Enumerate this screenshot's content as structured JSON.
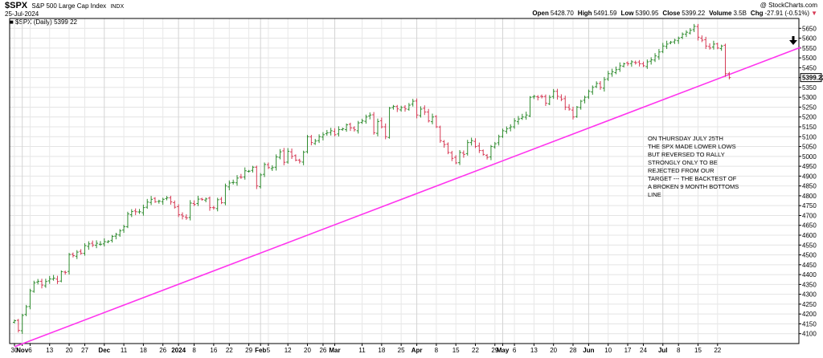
{
  "header": {
    "symbol": "$SPX",
    "name": "S&P 500 Large Cap Index",
    "exchange": "INDX",
    "date": "25-Jul-2024",
    "legend_label": "■ $SPX (Daily) 5399.22",
    "watermark": "@ StockCharts.com",
    "stats": [
      {
        "label": "Open",
        "value": "5428.70"
      },
      {
        "label": "High",
        "value": "5491.59"
      },
      {
        "label": "Low",
        "value": "5390.95"
      },
      {
        "label": "Close",
        "value": "5399.22"
      },
      {
        "label": "Volume",
        "value": "3.5B"
      },
      {
        "label": "Chg",
        "value": "-27.91 (-0.51%)"
      }
    ],
    "chg_arrow": "▼"
  },
  "chart_data": {
    "type": "bar",
    "subtype": "ohlc",
    "ylim": [
      4050,
      5700
    ],
    "y_ticks": [
      4100,
      4150,
      4200,
      4250,
      4300,
      4350,
      4400,
      4450,
      4500,
      4550,
      4600,
      4650,
      4700,
      4750,
      4800,
      4850,
      4900,
      4950,
      5000,
      5050,
      5100,
      5150,
      5200,
      5250,
      5300,
      5350,
      5400,
      5450,
      5500,
      5550,
      5600,
      5650
    ],
    "last_price_label": "5399.22",
    "up_color": "#2e8b2e",
    "down_color": "#d63a55",
    "grid": true,
    "x_ticks": [
      {
        "label": "30",
        "i": 0
      },
      {
        "label": "Nov",
        "i": 2,
        "bold": true
      },
      {
        "label": "6",
        "i": 4
      },
      {
        "label": "13",
        "i": 9
      },
      {
        "label": "20",
        "i": 14
      },
      {
        "label": "27",
        "i": 18
      },
      {
        "label": "Dec",
        "i": 23,
        "bold": true
      },
      {
        "label": "11",
        "i": 28
      },
      {
        "label": "18",
        "i": 33
      },
      {
        "label": "26",
        "i": 38
      },
      {
        "label": "2024",
        "i": 42,
        "bold": true
      },
      {
        "label": "8",
        "i": 46
      },
      {
        "label": "16",
        "i": 51
      },
      {
        "label": "22",
        "i": 55
      },
      {
        "label": "29",
        "i": 60
      },
      {
        "label": "Feb",
        "i": 63,
        "bold": true
      },
      {
        "label": "5",
        "i": 65
      },
      {
        "label": "12",
        "i": 70
      },
      {
        "label": "20",
        "i": 75
      },
      {
        "label": "26",
        "i": 79
      },
      {
        "label": "Mar",
        "i": 82,
        "bold": true
      },
      {
        "label": "11",
        "i": 89
      },
      {
        "label": "18",
        "i": 94
      },
      {
        "label": "25",
        "i": 99
      },
      {
        "label": "Apr",
        "i": 103,
        "bold": true
      },
      {
        "label": "8",
        "i": 108
      },
      {
        "label": "15",
        "i": 113
      },
      {
        "label": "22",
        "i": 118
      },
      {
        "label": "29",
        "i": 123
      },
      {
        "label": "May",
        "i": 125,
        "bold": true
      },
      {
        "label": "6",
        "i": 128
      },
      {
        "label": "13",
        "i": 133
      },
      {
        "label": "20",
        "i": 138
      },
      {
        "label": "28",
        "i": 143
      },
      {
        "label": "Jun",
        "i": 147,
        "bold": true
      },
      {
        "label": "10",
        "i": 152
      },
      {
        "label": "17",
        "i": 157
      },
      {
        "label": "24",
        "i": 161
      },
      {
        "label": "Jul",
        "i": 166,
        "bold": true
      },
      {
        "label": "8",
        "i": 170
      },
      {
        "label": "15",
        "i": 175
      },
      {
        "label": "22",
        "i": 180
      }
    ],
    "closes": [
      4166,
      4117,
      4193,
      4237,
      4318,
      4358,
      4366,
      4347,
      4365,
      4378,
      4382,
      4365,
      4415,
      4411,
      4502,
      4496,
      4514,
      4508,
      4547,
      4556,
      4550,
      4559,
      4554,
      4567,
      4569,
      4594,
      4604,
      4622,
      4643,
      4708,
      4720,
      4719,
      4719,
      4740,
      4768,
      4782,
      4770,
      4773,
      4782,
      4790,
      4769,
      4742,
      4704,
      4697,
      4688,
      4763,
      4756,
      4783,
      4781,
      4784,
      4740,
      4739,
      4780,
      4765,
      4850,
      4865,
      4868,
      4890,
      4894,
      4927,
      4925,
      4945,
      4850,
      4906,
      4959,
      4943,
      4943,
      4997,
      5023,
      4970,
      5026,
      5000,
      4981,
      4975,
      5021,
      5100,
      5070,
      5078,
      5100,
      5110,
      5120,
      5130,
      5110,
      5136,
      5140,
      5160,
      5145,
      5135,
      5170,
      5180,
      5200,
      5210,
      5120,
      5177,
      5150,
      5100,
      5245,
      5254,
      5241,
      5248,
      5241,
      5260,
      5280,
      5210,
      5240,
      5225,
      5180,
      5200,
      5150,
      5080,
      5060,
      5020,
      4990,
      4967,
      5020,
      5010,
      5070,
      5080,
      5050,
      5030,
      5010,
      4995,
      5050,
      5064,
      5100,
      5130,
      5140,
      5150,
      5180,
      5190,
      5200,
      5210,
      5300,
      5305,
      5300,
      5303,
      5270,
      5300,
      5330,
      5305,
      5290,
      5250,
      5240,
      5200,
      5250,
      5280,
      5300,
      5330,
      5350,
      5370,
      5350,
      5390,
      5420,
      5430,
      5440,
      5460,
      5470,
      5470,
      5480,
      5475,
      5470,
      5460,
      5480,
      5490,
      5510,
      5530,
      5560,
      5570,
      5580,
      5590,
      5600,
      5620,
      5630,
      5640,
      5660,
      5605,
      5590,
      5560,
      5550,
      5570,
      5550,
      5560,
      5420,
      5400
    ]
  },
  "annotation": {
    "lines": [
      "ON THURSDAY JULY 25TH",
      "THE SPX MADE LOWER LOWS",
      "BUT REVERSED TO RALLY",
      "STRONGLY ONLY TO BE",
      "REJECTED FROM OUR",
      "TARGET --- THE BACKTEST OF",
      "A BROKEN 9 MONTH BOTTOMS",
      "LINE"
    ],
    "line_color": "#ff33ee"
  }
}
